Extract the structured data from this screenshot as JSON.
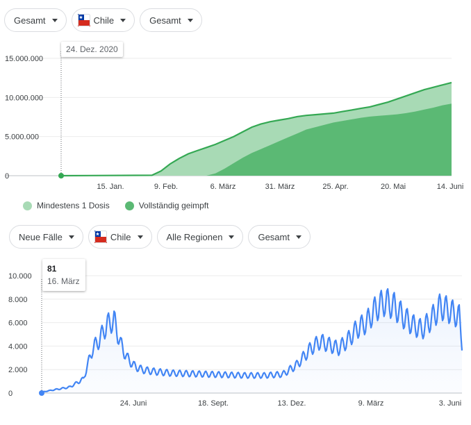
{
  "top_filters": [
    {
      "label": "Gesamt"
    },
    {
      "label": "Chile",
      "flag": "chile-flag"
    },
    {
      "label": "Gesamt"
    }
  ],
  "vaccination_chart": {
    "tooltip_date": "24. Dez. 2020",
    "legend": [
      {
        "label": "Mindestens 1 Dosis",
        "color": "#a8dab5"
      },
      {
        "label": "Vollständig geimpft",
        "color": "#5bb974"
      }
    ]
  },
  "bottom_filters": [
    {
      "label": "Neue Fälle"
    },
    {
      "label": "Chile",
      "flag": "chile-flag"
    },
    {
      "label": "Alle Regionen"
    },
    {
      "label": "Gesamt"
    }
  ],
  "cases_chart": {
    "tooltip_value": "81",
    "tooltip_date": "16. März"
  },
  "colors": {
    "at_least_one_dose": "#a8dab5",
    "fully_vaccinated": "#5bb974",
    "vaccination_line": "#34a853",
    "cases_line": "#4285f4"
  },
  "chart_data": [
    {
      "type": "area",
      "x_ticks": [
        "15. Jan.",
        "9. Feb.",
        "6. März",
        "31. März",
        "25. Apr.",
        "20. Mai",
        "14. Juni"
      ],
      "y_ticks": [
        "15.000.000",
        "10.000.000",
        "5.000.000",
        "0"
      ],
      "ylim": [
        0,
        15000000
      ],
      "x_unit": "days since 24. Dez. 2020",
      "xlim": [
        0,
        172
      ],
      "series": [
        {
          "name": "Mindestens 1 Dosis",
          "x": [
            0,
            40,
            44,
            48,
            52,
            56,
            60,
            64,
            68,
            72,
            76,
            80,
            84,
            88,
            92,
            96,
            100,
            104,
            108,
            112,
            116,
            120,
            124,
            128,
            132,
            136,
            140,
            144,
            148,
            152,
            156,
            160,
            164,
            168,
            172
          ],
          "values": [
            0,
            50000,
            600000,
            1500000,
            2200000,
            2800000,
            3200000,
            3600000,
            4000000,
            4500000,
            5000000,
            5600000,
            6200000,
            6600000,
            6900000,
            7100000,
            7300000,
            7550000,
            7700000,
            7800000,
            7900000,
            8000000,
            8200000,
            8400000,
            8600000,
            8800000,
            9100000,
            9400000,
            9800000,
            10200000,
            10600000,
            11000000,
            11300000,
            11600000,
            11900000
          ]
        },
        {
          "name": "Vollständig geimpft",
          "x": [
            0,
            64,
            68,
            72,
            76,
            80,
            84,
            88,
            92,
            96,
            100,
            104,
            108,
            112,
            116,
            120,
            124,
            128,
            132,
            136,
            140,
            144,
            148,
            152,
            156,
            160,
            164,
            168,
            172
          ],
          "values": [
            0,
            0,
            300000,
            900000,
            1600000,
            2300000,
            2900000,
            3400000,
            3900000,
            4400000,
            4900000,
            5400000,
            5900000,
            6200000,
            6500000,
            6800000,
            7000000,
            7200000,
            7400000,
            7550000,
            7650000,
            7750000,
            7850000,
            8000000,
            8200000,
            8450000,
            8700000,
            9000000,
            9200000
          ]
        }
      ]
    },
    {
      "type": "line",
      "x_ticks": [
        "24. Juni",
        "18. Sept.",
        "13. Dez.",
        "9. März",
        "3. Juni"
      ],
      "y_ticks": [
        "10.000",
        "8.000",
        "6.000",
        "4.000",
        "2.000",
        "0"
      ],
      "ylim": [
        0,
        10000
      ],
      "x_unit": "days since 16. März 2020",
      "xlim": [
        0,
        453
      ],
      "series": [
        {
          "name": "Neue Fälle",
          "x": [
            0,
            15,
            30,
            45,
            55,
            62,
            70,
            78,
            85,
            92,
            100,
            108,
            115,
            125,
            140,
            160,
            180,
            200,
            220,
            240,
            260,
            275,
            290,
            300,
            310,
            320,
            330,
            340,
            350,
            360,
            370,
            380,
            390,
            400,
            410,
            420,
            430,
            440,
            450,
            453
          ],
          "values": [
            81,
            300,
            500,
            1200,
            3800,
            4500,
            5800,
            6200,
            4200,
            3000,
            2300,
            2000,
            1900,
            1800,
            1700,
            1650,
            1600,
            1550,
            1500,
            1500,
            1600,
            2400,
            3800,
            4400,
            4100,
            3800,
            4500,
            5500,
            6000,
            7200,
            7800,
            7400,
            6500,
            5800,
            5400,
            6300,
            7400,
            7000,
            6500,
            4300
          ]
        }
      ]
    }
  ]
}
